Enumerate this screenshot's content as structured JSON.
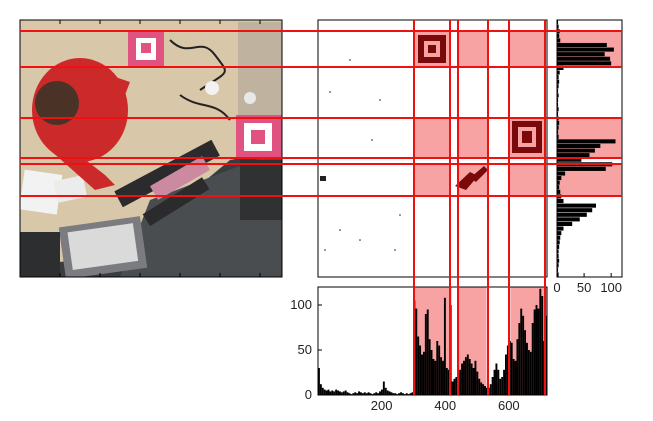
{
  "chart_data": [
    {
      "type": "image",
      "content": "overhead photograph of a person working at a desk with keyboards, monitors, cables and two pink fiducial markers",
      "colors": {
        "marker": "#e0527f",
        "shirt": "#cc2a2a",
        "desk": "#d9c7aa",
        "floor": "#3a3d40"
      }
    },
    {
      "type": "heatmap",
      "content": "binary marker-detection map",
      "highlight_columns": [
        [
          300,
          420
        ],
        [
          440,
          530
        ],
        [
          605,
          720
        ]
      ],
      "highlight_rows": [
        [
          52,
          148
        ],
        [
          302,
          420
        ],
        [
          460,
          540
        ]
      ],
      "colors": {
        "highlight": "#f8a3a3",
        "line": "#ee1111",
        "blob": "#7a0a0a"
      }
    },
    {
      "type": "bar",
      "orientation": "vertical",
      "xlim": [
        0,
        720
      ],
      "ylim": [
        0,
        120
      ],
      "xticks": [
        200,
        400,
        600
      ],
      "yticks": [
        0,
        50,
        100
      ],
      "x": [
        0,
        6,
        12,
        18,
        24,
        30,
        36,
        42,
        48,
        54,
        60,
        66,
        72,
        78,
        84,
        90,
        96,
        102,
        108,
        114,
        120,
        126,
        132,
        138,
        144,
        150,
        156,
        162,
        168,
        174,
        180,
        186,
        192,
        198,
        204,
        210,
        216,
        222,
        228,
        234,
        240,
        246,
        252,
        258,
        264,
        270,
        276,
        282,
        288,
        294,
        300,
        306,
        312,
        318,
        324,
        330,
        336,
        342,
        348,
        354,
        360,
        366,
        372,
        378,
        384,
        390,
        396,
        402,
        408,
        414,
        420,
        426,
        432,
        438,
        444,
        450,
        456,
        462,
        468,
        474,
        480,
        486,
        492,
        498,
        504,
        510,
        516,
        522,
        528,
        534,
        540,
        546,
        552,
        558,
        564,
        570,
        576,
        582,
        588,
        594,
        600,
        606,
        612,
        618,
        624,
        630,
        636,
        642,
        648,
        654,
        660,
        666,
        672,
        678,
        684,
        690,
        696,
        702,
        708,
        714
      ],
      "values": [
        30,
        12,
        8,
        6,
        5,
        6,
        4,
        5,
        4,
        6,
        5,
        4,
        3,
        4,
        5,
        3,
        2,
        1,
        2,
        3,
        2,
        4,
        3,
        2,
        3,
        2,
        3,
        2,
        1,
        2,
        3,
        2,
        4,
        6,
        15,
        8,
        5,
        4,
        3,
        2,
        2,
        1,
        2,
        3,
        2,
        1,
        2,
        1,
        2,
        3,
        105,
        96,
        65,
        55,
        45,
        48,
        90,
        95,
        62,
        50,
        40,
        38,
        60,
        55,
        42,
        38,
        108,
        30,
        28,
        100,
        15,
        18,
        20,
        22,
        28,
        35,
        38,
        42,
        45,
        40,
        35,
        30,
        38,
        26,
        18,
        14,
        12,
        10,
        8,
        8,
        12,
        20,
        28,
        35,
        28,
        18,
        20,
        28,
        45,
        55,
        60,
        58,
        40,
        38,
        62,
        80,
        96,
        88,
        72,
        58,
        50,
        48,
        80,
        95,
        100,
        96,
        118,
        110,
        60,
        88
      ],
      "colors": {
        "bar": "#000000",
        "highlight": "#f8a3a3",
        "line": "#ee1111"
      }
    },
    {
      "type": "bar",
      "orientation": "horizontal",
      "xlim": [
        0,
        120
      ],
      "ylim": [
        0,
        560
      ],
      "xticks": [
        0,
        50,
        100
      ],
      "y": [
        0,
        10,
        20,
        30,
        40,
        50,
        60,
        70,
        80,
        90,
        100,
        110,
        120,
        130,
        140,
        150,
        160,
        170,
        180,
        190,
        200,
        210,
        220,
        230,
        240,
        250,
        260,
        270,
        280,
        290,
        300,
        310,
        320,
        330,
        340,
        350,
        360,
        370,
        380,
        390,
        400,
        410,
        420,
        430,
        440,
        450,
        460,
        470,
        480,
        490,
        500,
        510,
        520,
        530,
        540,
        550
      ],
      "values": [
        2,
        3,
        5,
        4,
        6,
        92,
        105,
        88,
        98,
        100,
        12,
        5,
        3,
        4,
        3,
        2,
        3,
        2,
        2,
        3,
        2,
        3,
        4,
        3,
        2,
        3,
        108,
        80,
        70,
        60,
        45,
        102,
        90,
        15,
        8,
        5,
        4,
        6,
        8,
        12,
        72,
        65,
        55,
        42,
        28,
        12,
        8,
        6,
        5,
        4,
        3,
        3,
        4,
        3,
        2,
        3
      ],
      "colors": {
        "bar": "#000000",
        "highlight": "#f8a3a3",
        "line": "#ee1111"
      }
    }
  ]
}
